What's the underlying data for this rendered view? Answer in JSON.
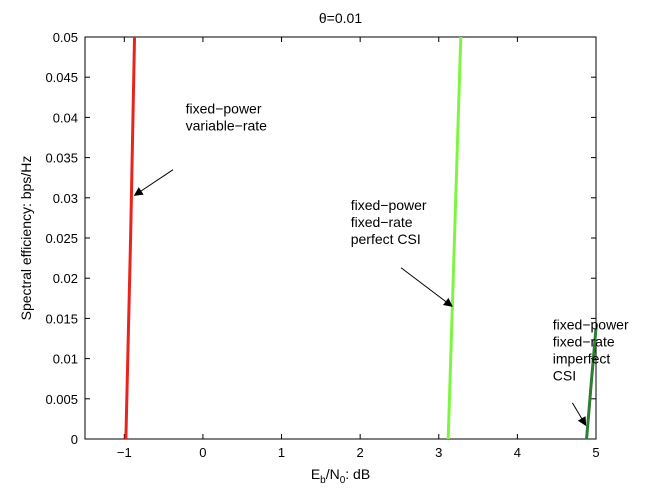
{
  "chart_data": {
    "type": "line",
    "title": "θ=0.01",
    "xlabel": {
      "main": "E",
      "sub1": "b",
      "mid": "/N",
      "sub2": "0",
      "tail": ": dB"
    },
    "ylabel": "Spectral efficiency: bps/Hz",
    "xlim": [
      -1.5,
      5
    ],
    "ylim": [
      0,
      0.05
    ],
    "xticks": [
      -1,
      0,
      1,
      2,
      3,
      4,
      5
    ],
    "xtick_labels": [
      "−1",
      "0",
      "1",
      "2",
      "3",
      "4",
      "5"
    ],
    "yticks": [
      0,
      0.005,
      0.01,
      0.015,
      0.02,
      0.025,
      0.03,
      0.035,
      0.04,
      0.045,
      0.05
    ],
    "ytick_labels": [
      "0",
      "0.005",
      "0.01",
      "0.015",
      "0.02",
      "0.025",
      "0.03",
      "0.035",
      "0.04",
      "0.045",
      "0.05"
    ],
    "grid": false,
    "series": [
      {
        "color": "#e8241c",
        "points": [
          [
            -0.98,
            0
          ],
          [
            -0.92,
            0.025
          ],
          [
            -0.87,
            0.05
          ]
        ]
      },
      {
        "color": "#7ef542",
        "points": [
          [
            3.12,
            0
          ],
          [
            3.2,
            0.025
          ],
          [
            3.28,
            0.05
          ]
        ]
      },
      {
        "color": "#2e7d32",
        "points": [
          [
            4.88,
            0
          ],
          [
            4.94,
            0.007
          ],
          [
            5.0,
            0.0138
          ]
        ]
      }
    ],
    "annotations": [
      {
        "lines": [
          "fixed−power",
          "variable−rate"
        ],
        "text_at": [
          -0.22,
          0.0405
        ],
        "arrow_from": [
          -0.38,
          0.0335
        ],
        "arrow_to": [
          -0.87,
          0.0303
        ]
      },
      {
        "lines": [
          "fixed−power",
          "fixed−rate",
          "perfect CSI"
        ],
        "text_at": [
          1.88,
          0.0285
        ],
        "arrow_from": [
          2.52,
          0.0213
        ],
        "arrow_to": [
          3.17,
          0.0165
        ]
      },
      {
        "lines": [
          "fixed−power",
          "fixed−rate",
          "imperfect",
          "CSI"
        ],
        "text_at": [
          4.45,
          0.0136
        ],
        "arrow_from": [
          4.7,
          0.0045
        ],
        "arrow_to": [
          4.87,
          0.0017
        ]
      }
    ]
  }
}
